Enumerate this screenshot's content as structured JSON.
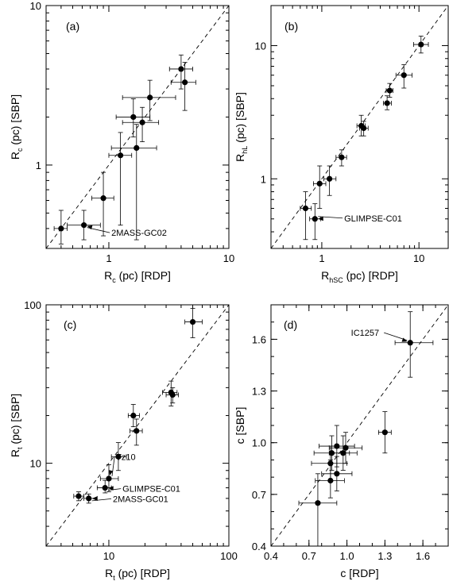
{
  "chart_data": [
    {
      "type": "scatter",
      "panel": "(a)",
      "log": true,
      "xlim": [
        0.3,
        10
      ],
      "ylim": [
        0.3,
        10
      ],
      "xticks": [
        1,
        10
      ],
      "xtick_labels": [
        "1",
        "10"
      ],
      "yticks": [
        1,
        10
      ],
      "ytick_labels": [
        "1",
        "10"
      ],
      "xlabel": {
        "main": "R",
        "sub": "c",
        "rest": " (pc) [RDP]"
      },
      "ylabel": {
        "main": "R",
        "sub": "c",
        "rest": " (pc) [SBP]"
      },
      "diagonal": true,
      "points": [
        {
          "x": 0.4,
          "y": 0.4,
          "xerr": [
            0.35,
            0.45
          ],
          "yerr": [
            0.32,
            0.52
          ]
        },
        {
          "x": 0.62,
          "y": 0.42,
          "xerr": [
            0.45,
            0.85
          ],
          "yerr": [
            0.34,
            0.52
          ]
        },
        {
          "x": 0.9,
          "y": 0.62,
          "xerr": [
            0.72,
            1.1
          ],
          "yerr": [
            0.36,
            0.9
          ]
        },
        {
          "x": 1.25,
          "y": 1.15,
          "xerr": [
            1.0,
            1.55
          ],
          "yerr": [
            0.42,
            1.6
          ]
        },
        {
          "x": 1.6,
          "y": 2.0,
          "xerr": [
            1.15,
            2.2
          ],
          "yerr": [
            1.5,
            2.6
          ]
        },
        {
          "x": 1.7,
          "y": 1.28,
          "xerr": [
            1.05,
            2.5
          ],
          "yerr": [
            0.34,
            1.8
          ]
        },
        {
          "x": 1.9,
          "y": 1.85,
          "xerr": [
            1.3,
            2.6
          ],
          "yerr": [
            1.4,
            2.3
          ]
        },
        {
          "x": 2.2,
          "y": 2.65,
          "xerr": [
            1.3,
            3.6
          ],
          "yerr": [
            1.9,
            3.4
          ]
        },
        {
          "x": 4.0,
          "y": 4.0,
          "xerr": [
            3.2,
            5.0
          ],
          "yerr": [
            3.0,
            4.9
          ]
        },
        {
          "x": 4.3,
          "y": 3.3,
          "xerr": [
            3.3,
            5.3
          ],
          "yerr": [
            2.2,
            4.4
          ]
        }
      ],
      "annotations": [
        {
          "text": "2MASS-GC02",
          "x": 0.62,
          "y": 0.42,
          "tx": 1.05,
          "ty": 0.36
        }
      ]
    },
    {
      "type": "scatter",
      "panel": "(b)",
      "log": true,
      "xlim": [
        0.3,
        20
      ],
      "ylim": [
        0.3,
        20
      ],
      "xticks": [
        1,
        10
      ],
      "xtick_labels": [
        "1",
        "10"
      ],
      "yticks": [
        1,
        10
      ],
      "ytick_labels": [
        "1",
        "10"
      ],
      "xlabel": {
        "main": "R",
        "sub": "hSC",
        "rest": " (pc) [RDP]"
      },
      "ylabel": {
        "main": "R",
        "sub": "hL",
        "rest": " (pc) [SBP]"
      },
      "diagonal": true,
      "points": [
        {
          "x": 0.68,
          "y": 0.6,
          "xerr": [
            0.6,
            0.78
          ],
          "yerr": [
            0.35,
            0.8
          ]
        },
        {
          "x": 0.85,
          "y": 0.5,
          "xerr": [
            0.75,
            0.97
          ],
          "yerr": [
            0.35,
            0.65
          ]
        },
        {
          "x": 0.95,
          "y": 0.92,
          "xerr": [
            0.82,
            1.1
          ],
          "yerr": [
            0.6,
            1.25
          ]
        },
        {
          "x": 1.2,
          "y": 1.0,
          "xerr": [
            1.05,
            1.4
          ],
          "yerr": [
            0.75,
            1.25
          ]
        },
        {
          "x": 1.6,
          "y": 1.45,
          "xerr": [
            1.4,
            1.8
          ],
          "yerr": [
            1.25,
            1.65
          ]
        },
        {
          "x": 2.55,
          "y": 2.5,
          "xerr": [
            2.3,
            2.8
          ],
          "yerr": [
            2.1,
            3.0
          ]
        },
        {
          "x": 2.7,
          "y": 2.4,
          "xerr": [
            2.45,
            3.0
          ],
          "yerr": [
            2.1,
            2.7
          ]
        },
        {
          "x": 4.7,
          "y": 3.7,
          "xerr": [
            4.3,
            5.2
          ],
          "yerr": [
            3.3,
            4.2
          ]
        },
        {
          "x": 5.0,
          "y": 4.6,
          "xerr": [
            4.6,
            5.4
          ],
          "yerr": [
            4.1,
            5.2
          ]
        },
        {
          "x": 7.0,
          "y": 6.0,
          "xerr": [
            5.8,
            8.5
          ],
          "yerr": [
            4.8,
            7.2
          ]
        },
        {
          "x": 10.5,
          "y": 10.2,
          "xerr": [
            8.8,
            12.5
          ],
          "yerr": [
            8.8,
            11.8
          ]
        }
      ],
      "annotations": [
        {
          "text": "GLIMPSE-C01",
          "x": 0.85,
          "y": 0.5,
          "tx": 1.7,
          "ty": 0.48
        }
      ]
    },
    {
      "type": "scatter",
      "panel": "(c)",
      "log": true,
      "xlim": [
        3,
        100
      ],
      "ylim": [
        3,
        100
      ],
      "xticks": [
        10,
        100
      ],
      "xtick_labels": [
        "10",
        "100"
      ],
      "yticks": [
        10,
        100
      ],
      "ytick_labels": [
        "10",
        "100"
      ],
      "xlabel": {
        "main": "R",
        "sub": "t",
        "rest": " (pc) [RDP]"
      },
      "ylabel": {
        "main": "R",
        "sub": "t",
        "rest": " (pc) [SBP]"
      },
      "diagonal": true,
      "points": [
        {
          "x": 5.6,
          "y": 6.2,
          "xerr": [
            5.1,
            6.2
          ],
          "yerr": [
            5.8,
            6.6
          ]
        },
        {
          "x": 6.8,
          "y": 6.0,
          "xerr": [
            6.2,
            8.0
          ],
          "yerr": [
            5.6,
            6.4
          ]
        },
        {
          "x": 9.3,
          "y": 7.0,
          "xerr": [
            8.0,
            10.5
          ],
          "yerr": [
            6.5,
            7.8
          ]
        },
        {
          "x": 10.0,
          "y": 8.0,
          "xerr": [
            8.5,
            12.0
          ],
          "yerr": [
            6.6,
            9.8
          ]
        },
        {
          "x": 12.0,
          "y": 11.0,
          "xerr": [
            10.5,
            14.0
          ],
          "yerr": [
            9.0,
            13.5
          ]
        },
        {
          "x": 16.0,
          "y": 20.0,
          "xerr": [
            14.5,
            18.0
          ],
          "yerr": [
            17.0,
            23.5
          ]
        },
        {
          "x": 17.0,
          "y": 16.0,
          "xerr": [
            15.0,
            19.0
          ],
          "yerr": [
            13.0,
            19.0
          ]
        },
        {
          "x": 33.0,
          "y": 28.0,
          "xerr": [
            28.0,
            37.0
          ],
          "yerr": [
            23.0,
            33.0
          ]
        },
        {
          "x": 34.0,
          "y": 27.0,
          "xerr": [
            30.0,
            38.0
          ],
          "yerr": [
            24.0,
            30.0
          ]
        },
        {
          "x": 50.0,
          "y": 78.0,
          "xerr": [
            43.0,
            60.0
          ],
          "yerr": [
            62.0,
            95.0
          ]
        }
      ],
      "annotations": [
        {
          "text": "Tz10",
          "x": 10.0,
          "y": 8.0,
          "tx": 11.5,
          "ty": 10.5
        },
        {
          "text": "GLIMPSE-C01",
          "x": 9.3,
          "y": 7.0,
          "tx": 13.0,
          "ty": 6.6
        },
        {
          "text": "2MASS-GC01",
          "x": 6.8,
          "y": 6.0,
          "tx": 10.8,
          "ty": 5.7
        }
      ]
    },
    {
      "type": "scatter",
      "panel": "(d)",
      "log": false,
      "xlim": [
        0.4,
        1.8
      ],
      "ylim": [
        0.4,
        1.8
      ],
      "xticks": [
        0.4,
        0.7,
        1.0,
        1.3,
        1.6
      ],
      "xtick_labels": [
        "0.4",
        "0.7",
        "1.0",
        "1.3",
        "1.6"
      ],
      "yticks": [
        0.4,
        0.7,
        1.0,
        1.3,
        1.6
      ],
      "ytick_labels": [
        "0.4",
        "0.7",
        "1.0",
        "1.3",
        "1.6"
      ],
      "xlabel": {
        "main": "c [RDP]",
        "sub": "",
        "rest": ""
      },
      "ylabel": {
        "main": "c [SBP]",
        "sub": "",
        "rest": ""
      },
      "diagonal": true,
      "points": [
        {
          "x": 0.77,
          "y": 0.65,
          "xerr": [
            0.62,
            0.92
          ],
          "yerr": [
            0.4,
            0.82
          ]
        },
        {
          "x": 0.87,
          "y": 0.78,
          "xerr": [
            0.75,
            0.98
          ],
          "yerr": [
            0.68,
            0.9
          ]
        },
        {
          "x": 0.87,
          "y": 0.88,
          "xerr": [
            0.72,
            1.0
          ],
          "yerr": [
            0.78,
            0.98
          ]
        },
        {
          "x": 0.88,
          "y": 0.94,
          "xerr": [
            0.74,
            1.02
          ],
          "yerr": [
            0.84,
            1.04
          ]
        },
        {
          "x": 0.92,
          "y": 0.82,
          "xerr": [
            0.8,
            1.04
          ],
          "yerr": [
            0.72,
            0.92
          ]
        },
        {
          "x": 0.92,
          "y": 0.98,
          "xerr": [
            0.78,
            1.06
          ],
          "yerr": [
            0.86,
            1.1
          ]
        },
        {
          "x": 0.97,
          "y": 0.94,
          "xerr": [
            0.86,
            1.08
          ],
          "yerr": [
            0.84,
            1.04
          ]
        },
        {
          "x": 0.99,
          "y": 0.97,
          "xerr": [
            0.86,
            1.12
          ],
          "yerr": [
            0.88,
            1.06
          ]
        },
        {
          "x": 1.3,
          "y": 1.06,
          "xerr": [
            1.25,
            1.35
          ],
          "yerr": [
            0.94,
            1.18
          ]
        },
        {
          "x": 1.5,
          "y": 1.58,
          "xerr": [
            1.38,
            1.68
          ],
          "yerr": [
            1.38,
            1.76
          ]
        }
      ],
      "annotations": [
        {
          "text": "IC1257",
          "x": 1.5,
          "y": 1.58,
          "tx": 1.28,
          "ty": 1.62
        }
      ]
    }
  ]
}
